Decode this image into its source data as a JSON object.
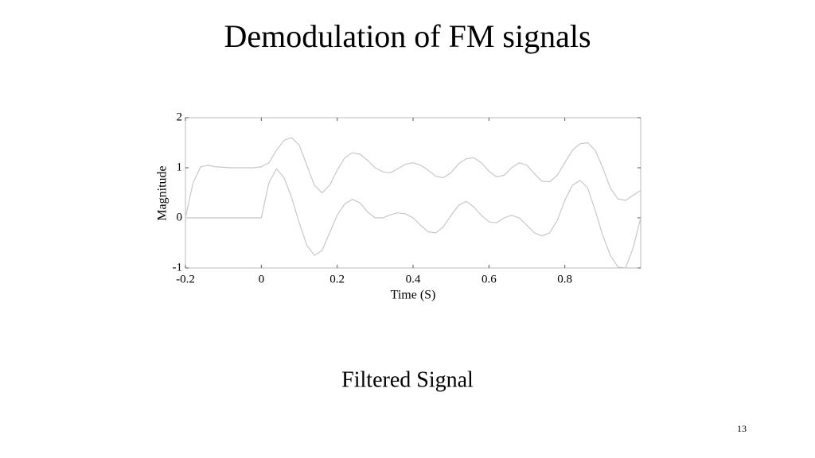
{
  "slide": {
    "title": "Demodulation of FM signals",
    "caption": "Filtered Signal",
    "page_number": "13"
  },
  "chart_data": {
    "type": "line",
    "x_label": "Time (S)",
    "y_label": "Magnitude",
    "x": [
      -0.2,
      -0.18,
      -0.16,
      -0.14,
      -0.12,
      -0.1,
      -0.08,
      -0.06,
      -0.04,
      -0.02,
      0,
      0.02,
      0.04,
      0.06,
      0.08,
      0.1,
      0.12,
      0.14,
      0.16,
      0.18,
      0.2,
      0.22,
      0.24,
      0.26,
      0.28,
      0.3,
      0.32,
      0.34,
      0.36,
      0.38,
      0.4,
      0.42,
      0.44,
      0.46,
      0.48,
      0.5,
      0.52,
      0.54,
      0.56,
      0.58,
      0.6,
      0.62,
      0.64,
      0.66,
      0.68,
      0.7,
      0.72,
      0.74,
      0.76,
      0.78,
      0.8,
      0.82,
      0.84,
      0.86,
      0.88,
      0.9,
      0.92,
      0.94,
      0.96,
      0.98,
      1.0
    ],
    "series": [
      {
        "color": "#c8c8c8",
        "values": [
          0,
          0.7,
          1.02,
          1.05,
          1.02,
          1.01,
          1.0,
          1.0,
          1.0,
          1.0,
          1.02,
          1.1,
          1.35,
          1.55,
          1.6,
          1.45,
          1.05,
          0.65,
          0.5,
          0.65,
          0.95,
          1.2,
          1.3,
          1.27,
          1.15,
          1.0,
          0.92,
          0.9,
          0.98,
          1.07,
          1.1,
          1.05,
          0.95,
          0.83,
          0.8,
          0.9,
          1.08,
          1.18,
          1.2,
          1.1,
          0.93,
          0.82,
          0.85,
          1.0,
          1.1,
          1.05,
          0.88,
          0.73,
          0.72,
          0.85,
          1.1,
          1.35,
          1.48,
          1.5,
          1.35,
          1.0,
          0.6,
          0.38,
          0.35,
          0.45,
          0.55
        ]
      },
      {
        "color": "#c8c8c8",
        "values": [
          0,
          0,
          0,
          0,
          0,
          0,
          0,
          0,
          0,
          0,
          0,
          0.7,
          0.98,
          0.8,
          0.4,
          -0.1,
          -0.55,
          -0.75,
          -0.65,
          -0.3,
          0.05,
          0.28,
          0.37,
          0.3,
          0.12,
          0.0,
          0.0,
          0.06,
          0.1,
          0.08,
          0.0,
          -0.15,
          -0.28,
          -0.3,
          -0.18,
          0.05,
          0.25,
          0.33,
          0.22,
          0.05,
          -0.08,
          -0.1,
          0.0,
          0.05,
          0.0,
          -0.15,
          -0.3,
          -0.36,
          -0.3,
          -0.05,
          0.35,
          0.65,
          0.75,
          0.6,
          0.15,
          -0.35,
          -0.75,
          -0.98,
          -1.0,
          -0.6,
          0.0
        ]
      }
    ],
    "xlim": [
      -0.2,
      1.0
    ],
    "xticks": [
      -0.2,
      0,
      0.2,
      0.4,
      0.6,
      0.8
    ],
    "ylim": [
      -1,
      2
    ],
    "yticks": [
      -1,
      0,
      1,
      2
    ]
  }
}
